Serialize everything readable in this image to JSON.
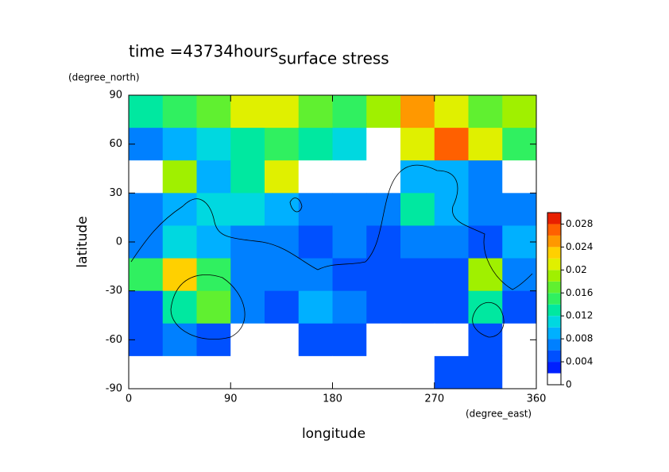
{
  "chart_data": {
    "type": "contour",
    "title": "surface stress",
    "subtitle": "time =43734hours",
    "x_label": "longitude",
    "x_units": "(degree_east)",
    "y_label": "latitude",
    "y_units": "(degree_north)",
    "xlim": [
      0,
      360
    ],
    "xticks": [
      0,
      90,
      180,
      270,
      360
    ],
    "ylim": [
      -90,
      90
    ],
    "yticks": [
      -90,
      -60,
      -30,
      0,
      30,
      60,
      90
    ],
    "x_edges": [
      0,
      30,
      60,
      90,
      120,
      150,
      180,
      210,
      240,
      270,
      300,
      330,
      360
    ],
    "y_edges": [
      90,
      70,
      50,
      30,
      10,
      -10,
      -30,
      -50,
      -70,
      -90
    ],
    "z": [
      [
        0.012,
        0.014,
        0.016,
        0.02,
        0.02,
        0.016,
        0.014,
        0.018,
        0.024,
        0.02,
        0.016,
        0.018
      ],
      [
        0.006,
        0.008,
        0.01,
        0.012,
        0.014,
        0.012,
        0.01,
        0.0,
        0.02,
        0.026,
        0.02,
        0.014
      ],
      [
        0.001,
        0.018,
        0.008,
        0.012,
        0.02,
        0.001,
        0.001,
        0.001,
        0.008,
        0.008,
        0.006,
        0.001
      ],
      [
        0.006,
        0.008,
        0.01,
        0.01,
        0.008,
        0.006,
        0.006,
        0.006,
        0.012,
        0.008,
        0.006,
        0.006
      ],
      [
        0.006,
        0.01,
        0.008,
        0.006,
        0.006,
        0.004,
        0.006,
        0.004,
        0.006,
        0.006,
        0.004,
        0.008
      ],
      [
        0.014,
        0.022,
        0.014,
        0.006,
        0.006,
        0.006,
        0.004,
        0.004,
        0.004,
        0.004,
        0.018,
        0.006
      ],
      [
        0.004,
        0.012,
        0.016,
        0.006,
        0.004,
        0.008,
        0.006,
        0.004,
        0.004,
        0.004,
        0.012,
        0.004
      ],
      [
        0.004,
        0.006,
        0.004,
        0.001,
        0.001,
        0.004,
        0.004,
        0.001,
        0.001,
        0.001,
        0.004,
        0.001
      ],
      [
        0.001,
        0.001,
        0.001,
        0.001,
        0.001,
        0.001,
        0.001,
        0.001,
        0.001,
        0.004,
        0.004,
        0.001
      ]
    ],
    "levels": [
      0,
      0.002,
      0.004,
      0.006,
      0.008,
      0.01,
      0.012,
      0.014,
      0.016,
      0.018,
      0.02,
      0.022,
      0.024,
      0.026,
      0.028,
      0.03
    ],
    "colors": [
      "#ffffff",
      "#0020ff",
      "#0050ff",
      "#0080ff",
      "#00b0ff",
      "#00d8e0",
      "#00e8a0",
      "#30f060",
      "#60f030",
      "#a0f000",
      "#e0f000",
      "#ffd000",
      "#ff9800",
      "#ff6000",
      "#e82000"
    ],
    "colorbar_ticks": [
      0,
      0.004,
      0.008,
      0.012,
      0.016,
      0.02,
      0.024,
      0.028
    ]
  }
}
